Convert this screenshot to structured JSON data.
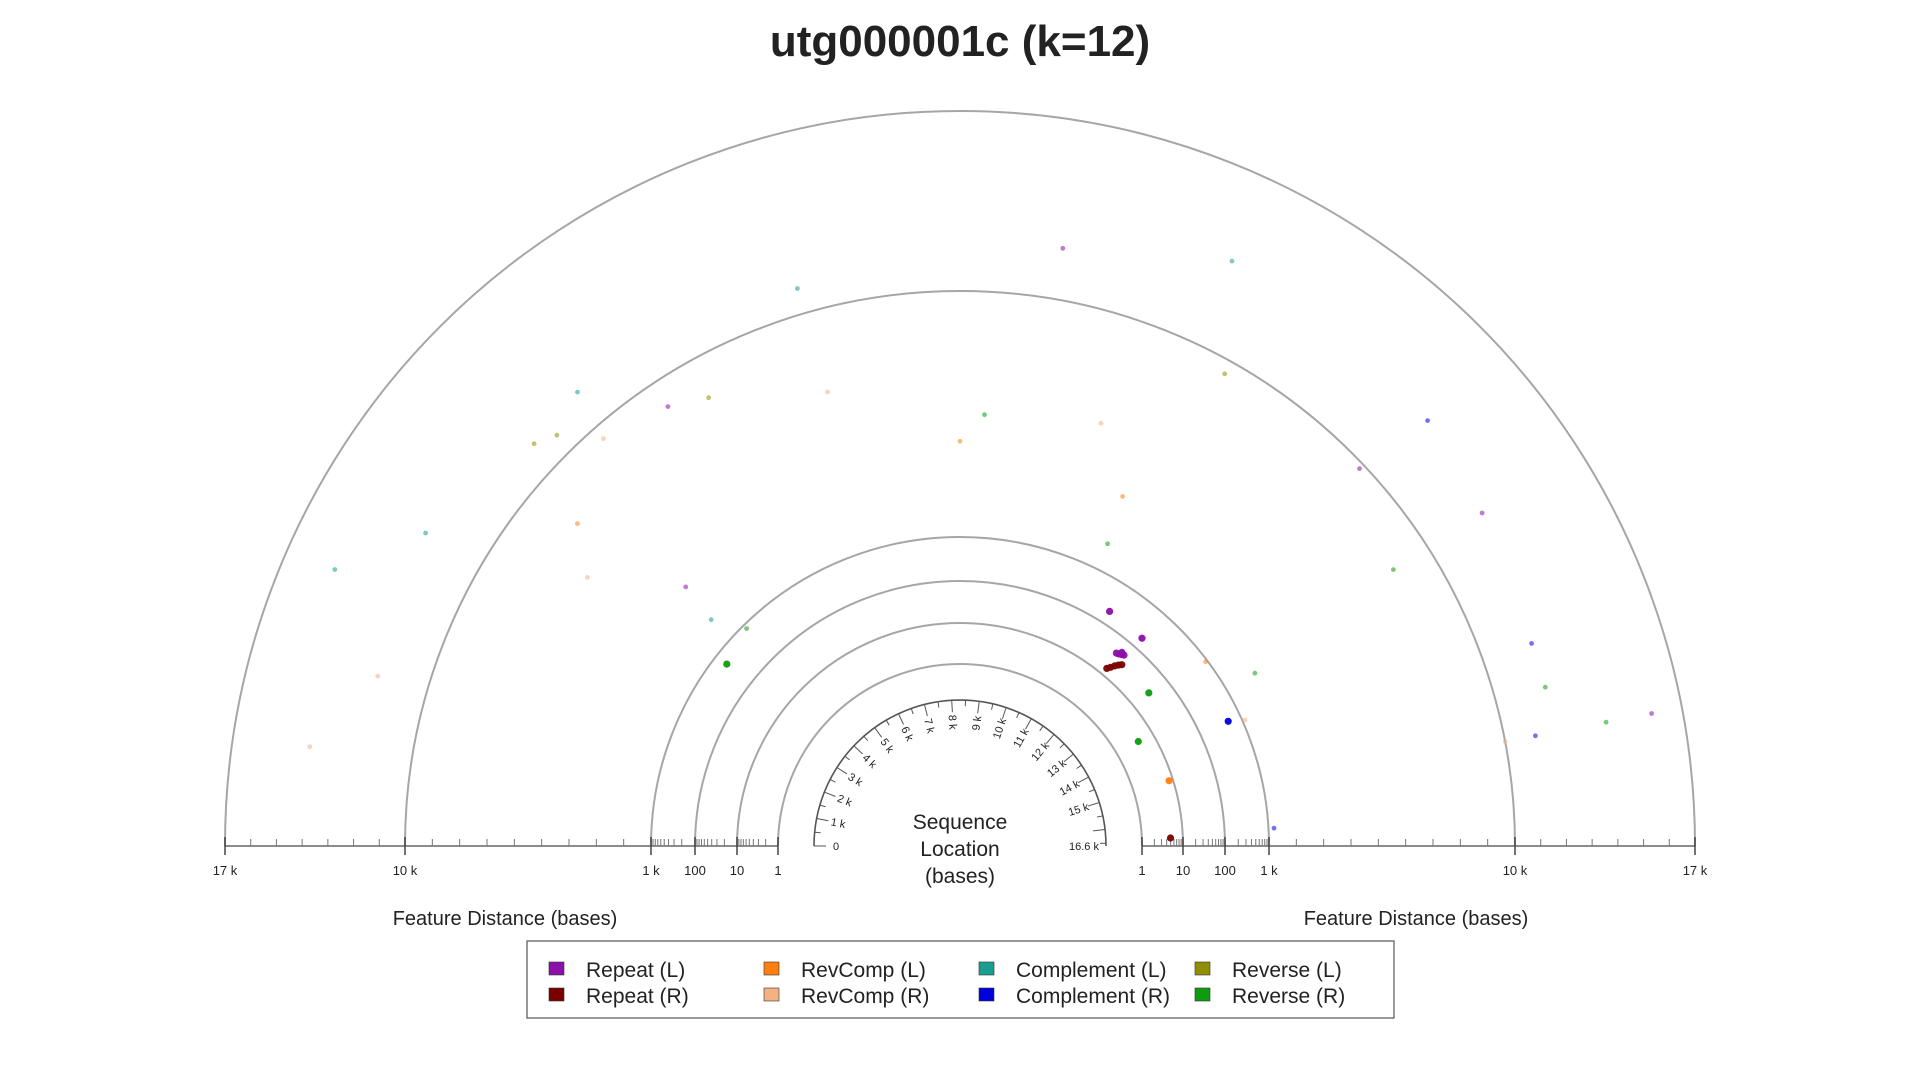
{
  "chart_data": {
    "type": "scatter",
    "title": "utg000001c (k=12)",
    "center_label": [
      "Sequence",
      "Location",
      "(bases)"
    ],
    "left_axis_title": "Feature Distance (bases)",
    "right_axis_title": "Feature Distance (bases)",
    "distance_tick_labels": [
      "1",
      "10",
      "100",
      "1 k",
      "10 k",
      "17 k"
    ],
    "distance_ticks": [
      1,
      10,
      100,
      1000,
      10000,
      17000
    ],
    "distance_range": [
      1,
      17000
    ],
    "sequence_range": [
      0,
      16600
    ],
    "sequence_tick_labels": [
      "0",
      "1 k",
      "2 k",
      "3 k",
      "4 k",
      "5 k",
      "6 k",
      "7 k",
      "8 k",
      "9 k",
      "10 k",
      "11 k",
      "12 k",
      "13 k",
      "14 k",
      "15 k",
      "16.6 k"
    ],
    "sequence_ticks": [
      0,
      1000,
      2000,
      3000,
      4000,
      5000,
      6000,
      7000,
      8000,
      9000,
      10000,
      11000,
      12000,
      13000,
      14000,
      15000,
      16600
    ],
    "grid": true,
    "legend_placement": "bottom-center",
    "series": [
      {
        "name": "Repeat (L)",
        "color": "#8B10A8",
        "points": [
          [
            11900,
            40
          ],
          [
            11950,
            42
          ],
          [
            12000,
            45
          ],
          [
            12050,
            48
          ],
          [
            11980,
            50
          ],
          [
            11300,
            200
          ],
          [
            12100,
            180
          ],
          [
            4000,
            3500
          ],
          [
            5200,
            9000
          ],
          [
            9200,
            12000
          ],
          [
            12600,
            9800
          ],
          [
            13600,
            12500
          ],
          [
            15600,
            15800
          ]
        ]
      },
      {
        "name": "Repeat (R)",
        "color": "#7A0000",
        "points": [
          [
            12150,
            30
          ],
          [
            12100,
            26
          ],
          [
            12050,
            22
          ],
          [
            12000,
            18
          ],
          [
            11950,
            15
          ],
          [
            16400,
            5
          ]
        ]
      },
      {
        "name": "RevComp (L)",
        "color": "#FF7F0E",
        "points": [
          [
            3700,
            8000
          ],
          [
            8300,
            4500
          ],
          [
            10600,
            3800
          ],
          [
            13200,
            900
          ],
          [
            15000,
            8
          ]
        ]
      },
      {
        "name": "RevComp (R)",
        "color": "#F4B183",
        "points": [
          [
            800,
            14000
          ],
          [
            1500,
            12000
          ],
          [
            3300,
            6500
          ],
          [
            4500,
            9500
          ],
          [
            6800,
            7000
          ],
          [
            10000,
            6000
          ],
          [
            14400,
            1100
          ],
          [
            15600,
            10000
          ]
        ]
      },
      {
        "name": "Complement (L)",
        "color": "#1A9E8F",
        "points": [
          [
            2200,
            15000
          ],
          [
            2800,
            12500
          ],
          [
            4600,
            11500
          ],
          [
            6800,
            11000
          ],
          [
            10600,
            13500
          ],
          [
            3900,
            2000
          ]
        ]
      },
      {
        "name": "Complement (R)",
        "color": "#0000DD",
        "points": [
          [
            12700,
            13000
          ],
          [
            14300,
            500
          ],
          [
            14800,
            12000
          ],
          [
            15600,
            11200
          ],
          [
            16300,
            1200
          ]
        ]
      },
      {
        "name": "Reverse (L)",
        "color": "#8F8F00",
        "points": [
          [
            4000,
            11200
          ],
          [
            4200,
            10800
          ],
          [
            11000,
            9500
          ],
          [
            5600,
            8500
          ]
        ]
      },
      {
        "name": "Reverse (R)",
        "color": "#0F9B0F",
        "points": [
          [
            3500,
            500
          ],
          [
            4200,
            800
          ],
          [
            8600,
            5500
          ],
          [
            10700,
            2000
          ],
          [
            13600,
            8500
          ],
          [
            13800,
            2200
          ],
          [
            15200,
            12000
          ],
          [
            15600,
            14000
          ],
          [
            13000,
            30
          ],
          [
            13800,
            4
          ]
        ]
      }
    ]
  }
}
